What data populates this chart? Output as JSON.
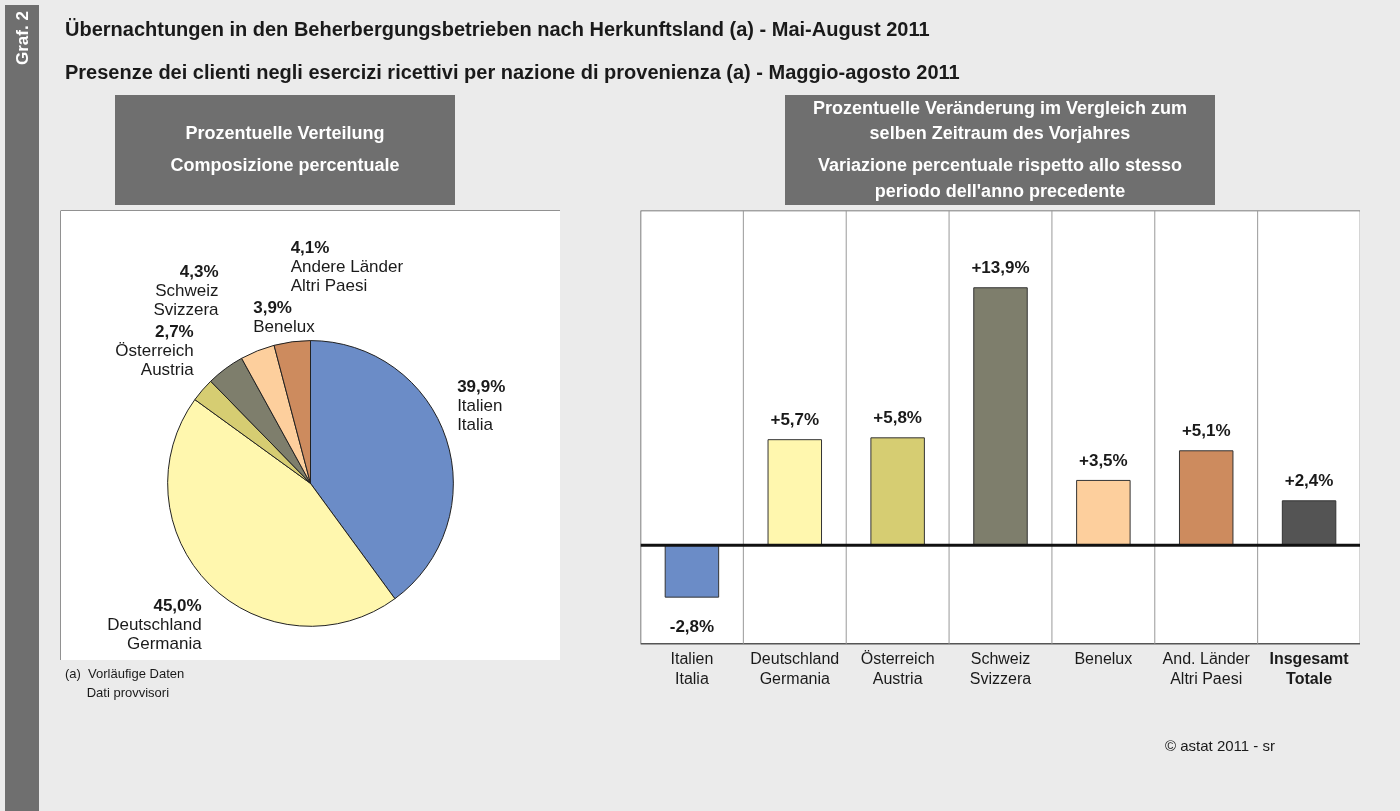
{
  "chart_data": [
    {
      "type": "pie",
      "title": "Übernachtungen in den Beherbergungsbetrieben nach Herkunftsland (a) - Mai-August 2011",
      "subtitle": "Presenze dei clienti negli esercizi ricettivi per nazione di provenienza (a) - Maggio-agosto 2011",
      "annotations": [
        "Graf. 2",
        "Prozentuelle Verteilung",
        "Composizione percentuale",
        "(a)  Vorläufige Daten\n      Dati provvisori"
      ],
      "categories": [
        "Italien\nItalia",
        "Deutschland\nGermania",
        "Österreich\nAustria",
        "Schweiz\nSvizzera",
        "Benelux",
        "Andere Länder\nAltri Paesi"
      ],
      "values": [
        39.9,
        45.0,
        2.7,
        4.3,
        3.9,
        4.1
      ],
      "value_labels": [
        "39,9%",
        "45,0%",
        "2,7%",
        "4,3%",
        "3,9%",
        "4,1%"
      ],
      "colors": [
        "#6b8cc7",
        "#fff7ae",
        "#d6cd72",
        "#7e7e6c",
        "#fdcf9d",
        "#cd8b5e"
      ]
    },
    {
      "type": "bar",
      "title": "Prozentuelle Veränderung im Vergleich zum selben Zeitraum des Vorjahres",
      "subtitle": "Variazione percentuale rispetto allo stesso periodo dell'anno precedente",
      "annotations": [
        "© astat 2011 - sr"
      ],
      "categories": [
        "Italien\nItalia",
        "Deutschland\nGermania",
        "Österreich\nAustria",
        "Schweiz\nSvizzera",
        "Benelux",
        "And. Länder\nAltri Paesi",
        "Insgesamt\nTotale"
      ],
      "values": [
        -2.8,
        5.7,
        5.8,
        13.9,
        3.5,
        5.1,
        2.4
      ],
      "value_labels": [
        "-2,8%",
        "+5,7%",
        "+5,8%",
        "+13,9%",
        "+3,5%",
        "+5,1%",
        "+2,4%"
      ],
      "colors": [
        "#6b8cc7",
        "#fff7ae",
        "#d6cd72",
        "#7e7e6c",
        "#fdcf9d",
        "#cd8b5e",
        "#545454"
      ]
    }
  ]
}
